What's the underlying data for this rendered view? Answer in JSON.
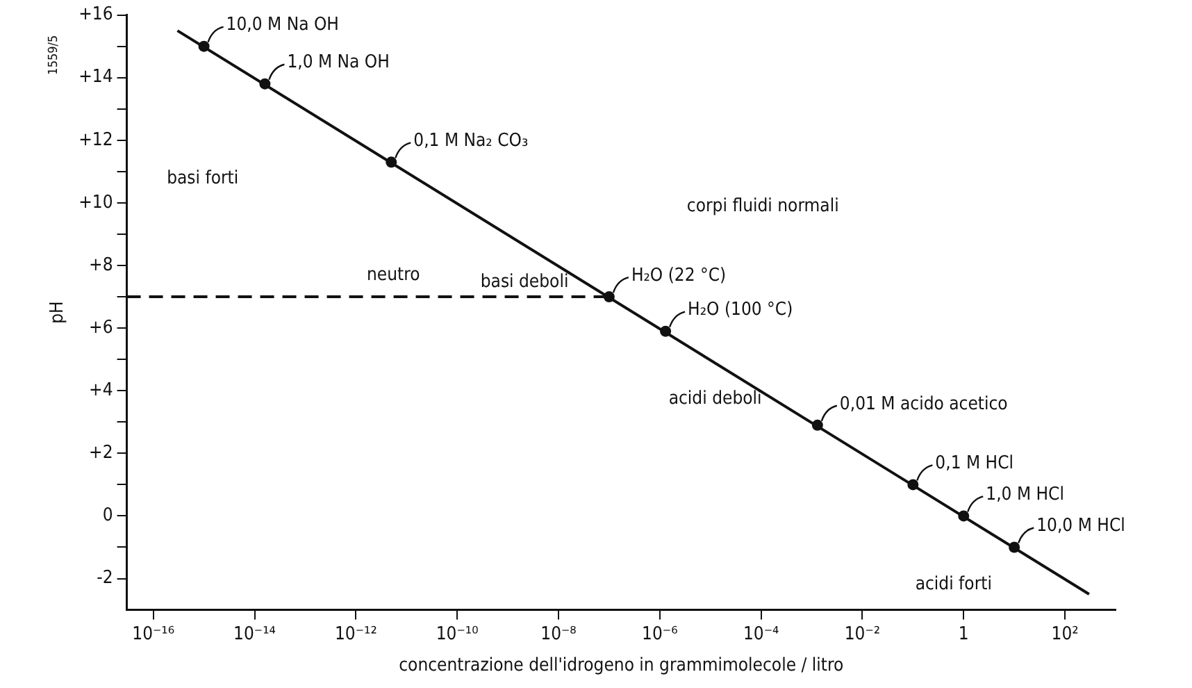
{
  "chart_data": {
    "type": "scatter",
    "xlabel": "concentrazione dell'idrogeno in grammimolecole / litro",
    "ylabel": "pH",
    "log": "x",
    "grid": false,
    "legend": false,
    "xlim": [
      3e-17,
      1000
    ],
    "xticks": [
      {
        "value": 1e-16,
        "label": "10⁻¹⁶"
      },
      {
        "value": 1e-14,
        "label": "10⁻¹⁴"
      },
      {
        "value": 1e-12,
        "label": "10⁻¹²"
      },
      {
        "value": 1e-10,
        "label": "10⁻¹⁰"
      },
      {
        "value": 1e-08,
        "label": "10⁻⁸"
      },
      {
        "value": 1e-06,
        "label": "10⁻⁶"
      },
      {
        "value": 0.0001,
        "label": "10⁻⁴"
      },
      {
        "value": 0.01,
        "label": "10⁻²"
      },
      1,
      {
        "value": 100,
        "label": "10²"
      }
    ],
    "ylim": [
      -3,
      16
    ],
    "yticks": [
      -2,
      {
        "value": -1,
        "label": null
      },
      0,
      {
        "value": 1,
        "label": null
      },
      {
        "value": 2,
        "label": "+2"
      },
      {
        "value": 3,
        "label": null
      },
      {
        "value": 4,
        "label": "+4"
      },
      {
        "value": 5,
        "label": null
      },
      {
        "value": 6,
        "label": "+6"
      },
      {
        "value": 7,
        "label": null
      },
      {
        "value": 8,
        "label": "+8"
      },
      {
        "value": 9,
        "label": null
      },
      {
        "value": 10,
        "label": "+10"
      },
      {
        "value": 11,
        "label": null
      },
      {
        "value": 12,
        "label": "+12"
      },
      {
        "value": 13,
        "label": null
      },
      {
        "value": 14,
        "label": "+14"
      },
      {
        "value": 15,
        "label": null
      },
      {
        "value": 16,
        "label": "+16"
      }
    ],
    "series": [
      {
        "type": "line",
        "color": "#111111",
        "line_style": "solid",
        "marker": "none",
        "x": [
          3e-16,
          300
        ],
        "values": [
          15.5,
          -2.5
        ]
      },
      {
        "type": "line",
        "color": "#111111",
        "line_style": "dashed",
        "marker": "none",
        "x": [
          3e-17,
          1e-07
        ],
        "values": [
          7,
          7
        ]
      },
      {
        "color": "#111111",
        "marker": "circle",
        "x": [
          1e-15,
          1.6e-14,
          5e-12,
          1e-07,
          1.3e-06,
          0.0013,
          0.1,
          1,
          10
        ],
        "values": [
          15,
          13.8,
          11.3,
          7,
          5.9,
          2.9,
          1,
          0,
          -1
        ]
      }
    ],
    "annotations": [
      {
        "text": "10,0 M Na OH",
        "x": 1e-15,
        "y": 15
      },
      {
        "text": "1,0 M Na OH",
        "x": 1.6e-14,
        "y": 13.8
      },
      {
        "text": "0,1 M Na₂ CO₃",
        "x": 5e-12,
        "y": 11.3
      },
      {
        "text": "H₂O (22 °C)",
        "x": 1e-07,
        "y": 7
      },
      {
        "text": "H₂O (100 °C)",
        "x": 1.3e-06,
        "y": 5.9
      },
      {
        "text": "0,01 M acido acetico",
        "x": 0.0013,
        "y": 2.9
      },
      {
        "text": "0,1 M HCl",
        "x": 0.1,
        "y": 1
      },
      {
        "text": "1,0 M HCl",
        "x": 1,
        "y": 0
      },
      {
        "text": "10,0 M HCl",
        "x": 10,
        "y": -1
      },
      "basi forti",
      "basi deboli",
      "neutro",
      "corpi fluidi normali",
      "acidi deboli",
      "acidi forti",
      "1559/5"
    ]
  }
}
